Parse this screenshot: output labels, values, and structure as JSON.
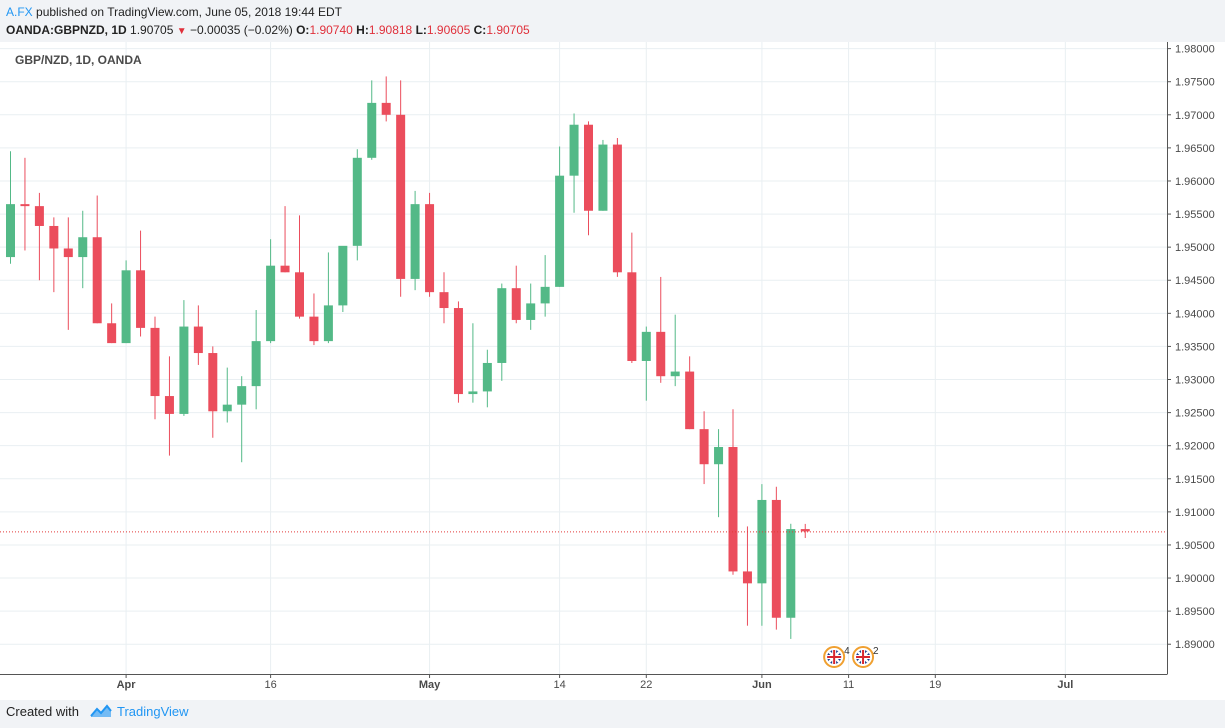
{
  "header": {
    "author": "A.FX",
    "published": "published on TradingView.com, June 05, 2018 19:44 EDT",
    "symbol": "OANDA:GBPNZD, 1D",
    "last": "1.90705",
    "change": "−0.00035 (−0.02%)",
    "o_label": "O:",
    "o_value": "1.90740",
    "h_label": "H:",
    "h_value": "1.90818",
    "l_label": "L:",
    "l_value": "1.90605",
    "c_label": "C:",
    "c_value": "1.90705"
  },
  "footer": {
    "created": "Created with",
    "brand": "TradingView"
  },
  "colors": {
    "up": "#53b987",
    "down": "#eb4d5c",
    "grid": "#e9eff2",
    "price_line": "#e23a3a"
  },
  "chart_data": {
    "type": "candlestick",
    "title": "GBP/NZD, 1D, OANDA",
    "xlabel": "",
    "ylabel": "",
    "ylim": [
      1.8855,
      1.981
    ],
    "y_ticks": [
      "1.98000",
      "1.97500",
      "1.97000",
      "1.96500",
      "1.96000",
      "1.95500",
      "1.95000",
      "1.94500",
      "1.94000",
      "1.93500",
      "1.93000",
      "1.92500",
      "1.92000",
      "1.91500",
      "1.91000",
      "1.90500",
      "1.90000",
      "1.89500",
      "1.89000"
    ],
    "x_ticks": [
      {
        "label": "Apr",
        "index": 8,
        "bold": true
      },
      {
        "label": "16",
        "index": 18,
        "bold": false
      },
      {
        "label": "May",
        "index": 29,
        "bold": true
      },
      {
        "label": "14",
        "index": 38,
        "bold": false
      },
      {
        "label": "22",
        "index": 44,
        "bold": false
      },
      {
        "label": "Jun",
        "index": 52,
        "bold": true
      },
      {
        "label": "11",
        "index": 58,
        "bold": false
      },
      {
        "label": "19",
        "index": 64,
        "bold": false
      },
      {
        "label": "Jul",
        "index": 73,
        "bold": true
      }
    ],
    "current_price": 1.90705,
    "candles": [
      {
        "o": 1.9485,
        "h": 1.9645,
        "l": 1.9475,
        "c": 1.9565
      },
      {
        "o": 1.9565,
        "h": 1.9635,
        "l": 1.9495,
        "c": 1.9562
      },
      {
        "o": 1.9562,
        "h": 1.9582,
        "l": 1.945,
        "c": 1.9532
      },
      {
        "o": 1.9532,
        "h": 1.9545,
        "l": 1.9432,
        "c": 1.9498
      },
      {
        "o": 1.9498,
        "h": 1.9545,
        "l": 1.9375,
        "c": 1.9485
      },
      {
        "o": 1.9485,
        "h": 1.9555,
        "l": 1.9438,
        "c": 1.9515
      },
      {
        "o": 1.9515,
        "h": 1.9578,
        "l": 1.9385,
        "c": 1.9385
      },
      {
        "o": 1.9385,
        "h": 1.9415,
        "l": 1.9355,
        "c": 1.9355
      },
      {
        "o": 1.9355,
        "h": 1.948,
        "l": 1.9355,
        "c": 1.9465
      },
      {
        "o": 1.9465,
        "h": 1.9525,
        "l": 1.9365,
        "c": 1.9378
      },
      {
        "o": 1.9378,
        "h": 1.9395,
        "l": 1.924,
        "c": 1.9275
      },
      {
        "o": 1.9275,
        "h": 1.9335,
        "l": 1.9185,
        "c": 1.9248
      },
      {
        "o": 1.9248,
        "h": 1.942,
        "l": 1.9245,
        "c": 1.938
      },
      {
        "o": 1.938,
        "h": 1.9412,
        "l": 1.9322,
        "c": 1.934
      },
      {
        "o": 1.934,
        "h": 1.935,
        "l": 1.9212,
        "c": 1.9252
      },
      {
        "o": 1.9252,
        "h": 1.9318,
        "l": 1.9235,
        "c": 1.9262
      },
      {
        "o": 1.9262,
        "h": 1.9305,
        "l": 1.9175,
        "c": 1.929
      },
      {
        "o": 1.929,
        "h": 1.9405,
        "l": 1.9255,
        "c": 1.9358
      },
      {
        "o": 1.9358,
        "h": 1.9512,
        "l": 1.9355,
        "c": 1.9472
      },
      {
        "o": 1.9472,
        "h": 1.9562,
        "l": 1.9462,
        "c": 1.9462
      },
      {
        "o": 1.9462,
        "h": 1.9548,
        "l": 1.9392,
        "c": 1.9395
      },
      {
        "o": 1.9395,
        "h": 1.943,
        "l": 1.9352,
        "c": 1.9358
      },
      {
        "o": 1.9358,
        "h": 1.9492,
        "l": 1.9355,
        "c": 1.9412
      },
      {
        "o": 1.9412,
        "h": 1.9498,
        "l": 1.9402,
        "c": 1.9502
      },
      {
        "o": 1.9502,
        "h": 1.9648,
        "l": 1.948,
        "c": 1.9635
      },
      {
        "o": 1.9635,
        "h": 1.9752,
        "l": 1.9632,
        "c": 1.9718
      },
      {
        "o": 1.9718,
        "h": 1.9758,
        "l": 1.969,
        "c": 1.97
      },
      {
        "o": 1.97,
        "h": 1.9752,
        "l": 1.9425,
        "c": 1.9452
      },
      {
        "o": 1.9452,
        "h": 1.9585,
        "l": 1.9435,
        "c": 1.9565
      },
      {
        "o": 1.9565,
        "h": 1.9582,
        "l": 1.9425,
        "c": 1.9432
      },
      {
        "o": 1.9432,
        "h": 1.9462,
        "l": 1.9385,
        "c": 1.9408
      },
      {
        "o": 1.9408,
        "h": 1.9418,
        "l": 1.9265,
        "c": 1.9278
      },
      {
        "o": 1.9278,
        "h": 1.9385,
        "l": 1.9265,
        "c": 1.9282
      },
      {
        "o": 1.9282,
        "h": 1.9345,
        "l": 1.9258,
        "c": 1.9325
      },
      {
        "o": 1.9325,
        "h": 1.9445,
        "l": 1.9298,
        "c": 1.9438
      },
      {
        "o": 1.9438,
        "h": 1.9472,
        "l": 1.9385,
        "c": 1.939
      },
      {
        "o": 1.939,
        "h": 1.9445,
        "l": 1.9375,
        "c": 1.9415
      },
      {
        "o": 1.9415,
        "h": 1.9488,
        "l": 1.9395,
        "c": 1.944
      },
      {
        "o": 1.944,
        "h": 1.9652,
        "l": 1.944,
        "c": 1.9608
      },
      {
        "o": 1.9608,
        "h": 1.9702,
        "l": 1.9552,
        "c": 1.9685
      },
      {
        "o": 1.9685,
        "h": 1.969,
        "l": 1.9518,
        "c": 1.9555
      },
      {
        "o": 1.9555,
        "h": 1.9662,
        "l": 1.9555,
        "c": 1.9655
      },
      {
        "o": 1.9655,
        "h": 1.9665,
        "l": 1.9455,
        "c": 1.9462
      },
      {
        "o": 1.9462,
        "h": 1.9522,
        "l": 1.9325,
        "c": 1.9328
      },
      {
        "o": 1.9328,
        "h": 1.938,
        "l": 1.9268,
        "c": 1.9372
      },
      {
        "o": 1.9372,
        "h": 1.9455,
        "l": 1.9295,
        "c": 1.9305
      },
      {
        "o": 1.9305,
        "h": 1.9398,
        "l": 1.929,
        "c": 1.9312
      },
      {
        "o": 1.9312,
        "h": 1.9335,
        "l": 1.9225,
        "c": 1.9225
      },
      {
        "o": 1.9225,
        "h": 1.9252,
        "l": 1.9142,
        "c": 1.9172
      },
      {
        "o": 1.9172,
        "h": 1.9225,
        "l": 1.9092,
        "c": 1.9198
      },
      {
        "o": 1.9198,
        "h": 1.9255,
        "l": 1.9005,
        "c": 1.901
      },
      {
        "o": 1.901,
        "h": 1.9078,
        "l": 1.8928,
        "c": 1.8992
      },
      {
        "o": 1.8992,
        "h": 1.9142,
        "l": 1.8928,
        "c": 1.9118
      },
      {
        "o": 1.9118,
        "h": 1.9138,
        "l": 1.8922,
        "c": 1.894
      },
      {
        "o": 1.894,
        "h": 1.9082,
        "l": 1.8908,
        "c": 1.9074
      },
      {
        "o": 1.9074,
        "h": 1.90818,
        "l": 1.90605,
        "c": 1.90705
      }
    ],
    "events": [
      {
        "index": 57,
        "label": "4",
        "flag": "uk-flag-icon"
      },
      {
        "index": 59,
        "label": "2",
        "flag": "uk-flag-icon"
      }
    ]
  }
}
